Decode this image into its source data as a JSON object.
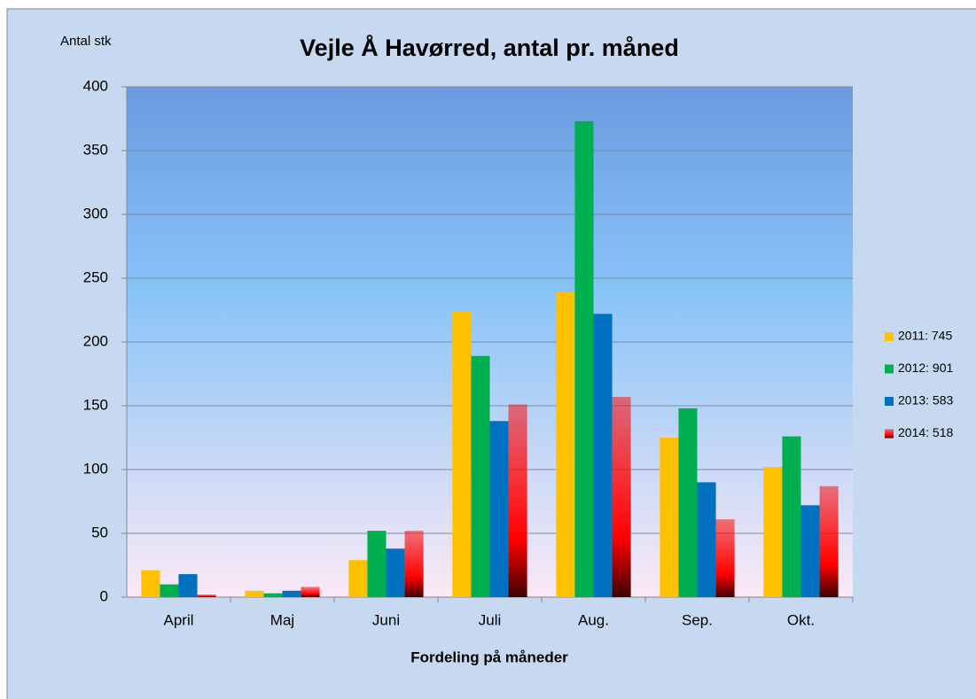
{
  "chart_data": {
    "type": "bar",
    "title": "Vejle Å Havørred, antal pr. måned",
    "y_label": "Antal stk",
    "x_label": "Fordeling  på måneder",
    "categories": [
      "April",
      "Maj",
      "Juni",
      "Juli",
      "Aug.",
      "Sep.",
      "Okt."
    ],
    "series": [
      {
        "name": "2011: 745",
        "color": "#ffc000",
        "values": [
          21,
          5,
          29,
          224,
          239,
          125,
          102
        ]
      },
      {
        "name": "2012: 901",
        "color": "#00b050",
        "values": [
          10,
          3,
          52,
          189,
          373,
          148,
          126
        ]
      },
      {
        "name": "2013: 583",
        "color": "#0070c0",
        "values": [
          18,
          5,
          38,
          138,
          222,
          90,
          72
        ]
      },
      {
        "name": "2014: 518",
        "color": "#ff0000",
        "values": [
          2,
          8,
          52,
          151,
          157,
          61,
          87
        ]
      }
    ],
    "ylim": [
      0,
      400
    ],
    "yticks": [
      0,
      50,
      100,
      150,
      200,
      250,
      300,
      350,
      400
    ],
    "grid": true,
    "legend": "right"
  }
}
